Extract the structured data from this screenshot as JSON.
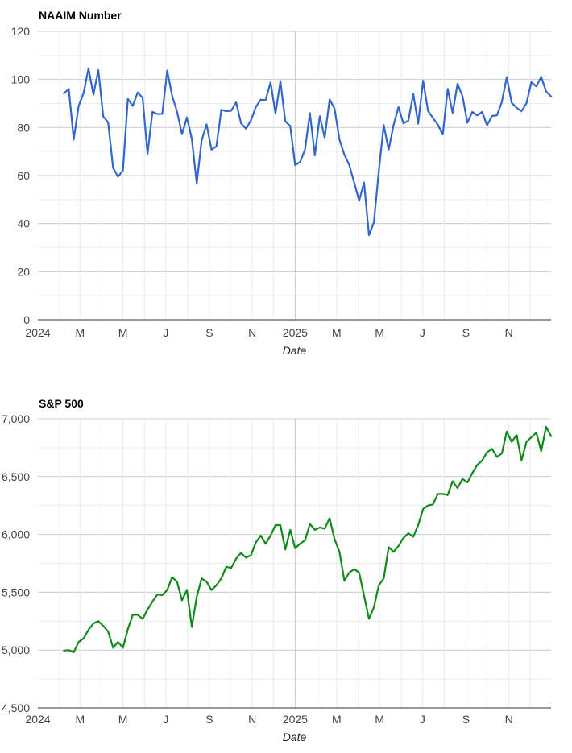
{
  "chart_data": [
    {
      "type": "line",
      "title": "NAAIM Number",
      "xlabel": "Date",
      "ylabel": "",
      "ylim": [
        0,
        120
      ],
      "yticks": [
        "0",
        "20",
        "40",
        "60",
        "80",
        "100",
        "120"
      ],
      "ytick_values": [
        0,
        20,
        40,
        60,
        80,
        100,
        120
      ],
      "xticks": [
        "2024",
        "M",
        "M",
        "J",
        "S",
        "N",
        "2025",
        "M",
        "M",
        "J",
        "S",
        "N"
      ],
      "xtick_values": [
        "2024-01-01",
        "2024-03-01",
        "2024-05-01",
        "2024-07-01",
        "2024-09-01",
        "2024-11-01",
        "2025-01-01",
        "2025-03-01",
        "2025-05-01",
        "2025-07-01",
        "2025-09-01",
        "2025-11-01"
      ],
      "xlim": [
        "2024-01-01",
        "2025-12-31"
      ],
      "color": "#3366cc",
      "grid": true,
      "series": [
        {
          "dates": [
            "2024-02-07",
            "2024-02-14",
            "2024-02-21",
            "2024-02-28",
            "2024-03-06",
            "2024-03-13",
            "2024-03-20",
            "2024-03-27",
            "2024-04-03",
            "2024-04-10",
            "2024-04-17",
            "2024-04-24",
            "2024-05-01",
            "2024-05-08",
            "2024-05-15",
            "2024-05-22",
            "2024-05-29",
            "2024-06-05",
            "2024-06-12",
            "2024-06-19",
            "2024-06-26",
            "2024-07-03",
            "2024-07-10",
            "2024-07-17",
            "2024-07-24",
            "2024-07-31",
            "2024-08-07",
            "2024-08-14",
            "2024-08-21",
            "2024-08-28",
            "2024-09-04",
            "2024-09-11",
            "2024-09-18",
            "2024-09-25",
            "2024-10-02",
            "2024-10-09",
            "2024-10-16",
            "2024-10-23",
            "2024-10-30",
            "2024-11-06",
            "2024-11-13",
            "2024-11-20",
            "2024-11-27",
            "2024-12-04",
            "2024-12-11",
            "2024-12-18",
            "2024-12-25",
            "2025-01-01",
            "2025-01-08",
            "2025-01-15",
            "2025-01-22",
            "2025-01-29",
            "2025-02-05",
            "2025-02-12",
            "2025-02-19",
            "2025-02-26",
            "2025-03-05",
            "2025-03-12",
            "2025-03-19",
            "2025-03-26",
            "2025-04-02",
            "2025-04-09",
            "2025-04-16",
            "2025-04-23",
            "2025-04-30",
            "2025-05-07",
            "2025-05-14",
            "2025-05-21",
            "2025-05-28",
            "2025-06-04",
            "2025-06-11",
            "2025-06-18",
            "2025-06-25",
            "2025-07-02",
            "2025-07-09",
            "2025-07-16",
            "2025-07-23",
            "2025-07-30",
            "2025-08-06",
            "2025-08-13",
            "2025-08-20",
            "2025-08-27",
            "2025-09-03",
            "2025-09-10",
            "2025-09-17",
            "2025-09-24",
            "2025-10-01",
            "2025-10-08",
            "2025-10-15",
            "2025-10-22",
            "2025-10-29",
            "2025-11-05",
            "2025-11-12",
            "2025-11-19",
            "2025-11-26",
            "2025-12-03",
            "2025-12-10",
            "2025-12-17",
            "2025-12-24",
            "2025-12-31"
          ],
          "values": [
            94.2,
            96.0,
            75.0,
            89.0,
            94.3,
            104.6,
            93.7,
            103.9,
            84.6,
            82.1,
            63.2,
            59.5,
            62.1,
            91.9,
            89.0,
            94.6,
            92.4,
            69.0,
            86.5,
            85.6,
            85.7,
            103.7,
            93.2,
            86.6,
            77.2,
            84.2,
            75.3,
            56.7,
            74.7,
            81.3,
            70.8,
            72.2,
            87.4,
            86.8,
            87.0,
            90.5,
            81.8,
            79.5,
            82.9,
            88.5,
            91.6,
            91.4,
            98.8,
            85.9,
            99.3,
            82.6,
            80.6,
            64.3,
            65.7,
            70.8,
            86.0,
            68.4,
            84.7,
            75.8,
            91.7,
            87.9,
            75.0,
            68.7,
            64.4,
            57.0,
            49.5,
            57.1,
            35.2,
            40.5,
            61.9,
            81.0,
            70.8,
            81.0,
            88.5,
            81.7,
            82.9,
            94.0,
            81.6,
            99.5,
            86.9,
            84.0,
            81.1,
            77.1,
            96.1,
            86.1,
            98.2,
            93.1,
            82.0,
            86.5,
            85.0,
            86.5,
            80.9,
            84.8,
            85.1,
            90.6,
            101.0,
            90.3,
            88.2,
            86.8,
            90.1,
            98.9,
            97.1,
            101.1,
            95.0,
            93.0
          ]
        }
      ]
    },
    {
      "type": "line",
      "title": "S&P 500",
      "xlabel": "Date",
      "ylabel": "",
      "ylim": [
        4500,
        7000
      ],
      "yticks": [
        "4,500",
        "5,000",
        "5,500",
        "6,000",
        "6,500",
        "7,000"
      ],
      "ytick_values": [
        4500,
        5000,
        5500,
        6000,
        6500,
        7000
      ],
      "xticks": [
        "2024",
        "M",
        "M",
        "J",
        "S",
        "N",
        "2025",
        "M",
        "M",
        "J",
        "S",
        "N"
      ],
      "xtick_values": [
        "2024-01-01",
        "2024-03-01",
        "2024-05-01",
        "2024-07-01",
        "2024-09-01",
        "2024-11-01",
        "2025-01-01",
        "2025-03-01",
        "2025-05-01",
        "2025-07-01",
        "2025-09-01",
        "2025-11-01"
      ],
      "xlim": [
        "2024-01-01",
        "2025-12-31"
      ],
      "color": "#108a1a",
      "grid": true,
      "series": [
        {
          "dates": [
            "2024-02-07",
            "2024-02-14",
            "2024-02-21",
            "2024-02-28",
            "2024-03-06",
            "2024-03-13",
            "2024-03-20",
            "2024-03-27",
            "2024-04-03",
            "2024-04-10",
            "2024-04-17",
            "2024-04-24",
            "2024-05-01",
            "2024-05-08",
            "2024-05-15",
            "2024-05-22",
            "2024-05-29",
            "2024-06-05",
            "2024-06-12",
            "2024-06-19",
            "2024-06-26",
            "2024-07-03",
            "2024-07-10",
            "2024-07-17",
            "2024-07-24",
            "2024-07-31",
            "2024-08-07",
            "2024-08-14",
            "2024-08-21",
            "2024-08-28",
            "2024-09-04",
            "2024-09-11",
            "2024-09-18",
            "2024-09-25",
            "2024-10-02",
            "2024-10-09",
            "2024-10-16",
            "2024-10-23",
            "2024-10-30",
            "2024-11-06",
            "2024-11-13",
            "2024-11-20",
            "2024-11-27",
            "2024-12-04",
            "2024-12-11",
            "2024-12-18",
            "2024-12-25",
            "2025-01-01",
            "2025-01-08",
            "2025-01-15",
            "2025-01-22",
            "2025-01-29",
            "2025-02-05",
            "2025-02-12",
            "2025-02-19",
            "2025-02-26",
            "2025-03-05",
            "2025-03-12",
            "2025-03-19",
            "2025-03-26",
            "2025-04-02",
            "2025-04-09",
            "2025-04-16",
            "2025-04-23",
            "2025-04-30",
            "2025-05-07",
            "2025-05-14",
            "2025-05-21",
            "2025-05-28",
            "2025-06-04",
            "2025-06-11",
            "2025-06-18",
            "2025-06-25",
            "2025-07-02",
            "2025-07-09",
            "2025-07-16",
            "2025-07-23",
            "2025-07-30",
            "2025-08-06",
            "2025-08-13",
            "2025-08-20",
            "2025-08-27",
            "2025-09-03",
            "2025-09-10",
            "2025-09-17",
            "2025-09-24",
            "2025-10-01",
            "2025-10-08",
            "2025-10-15",
            "2025-10-22",
            "2025-10-29",
            "2025-11-05",
            "2025-11-12",
            "2025-11-19",
            "2025-11-26",
            "2025-12-03",
            "2025-12-10",
            "2025-12-17",
            "2025-12-24",
            "2025-12-31"
          ],
          "values": [
            4995,
            5000,
            4981,
            5070,
            5100,
            5175,
            5230,
            5250,
            5210,
            5160,
            5020,
            5070,
            5020,
            5180,
            5305,
            5305,
            5270,
            5350,
            5420,
            5480,
            5475,
            5520,
            5630,
            5590,
            5430,
            5520,
            5200,
            5460,
            5620,
            5590,
            5520,
            5560,
            5620,
            5720,
            5710,
            5790,
            5840,
            5800,
            5820,
            5930,
            5990,
            5920,
            5990,
            6080,
            6080,
            5870,
            6040,
            5880,
            5920,
            5950,
            6090,
            6040,
            6060,
            6050,
            6140,
            5960,
            5850,
            5600,
            5670,
            5700,
            5670,
            5470,
            5270,
            5370,
            5560,
            5620,
            5890,
            5850,
            5900,
            5970,
            6010,
            5980,
            6080,
            6220,
            6250,
            6260,
            6350,
            6350,
            6340,
            6460,
            6400,
            6480,
            6450,
            6530,
            6600,
            6640,
            6710,
            6740,
            6670,
            6700,
            6890,
            6800,
            6860,
            6640,
            6800,
            6840,
            6880,
            6720,
            6930,
            6850
          ]
        }
      ]
    }
  ]
}
